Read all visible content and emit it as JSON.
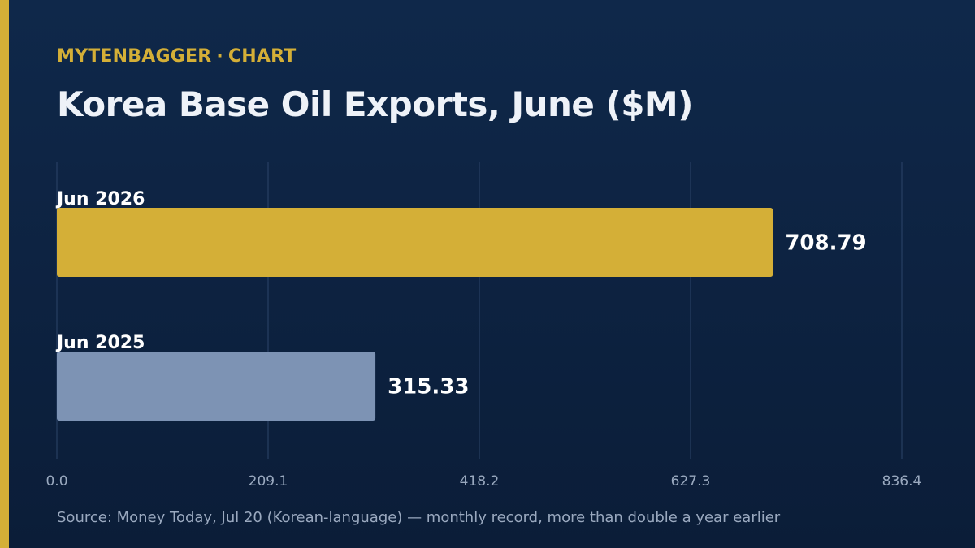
{
  "brand": {
    "name": "MYTENBAGGER",
    "separator": "·",
    "section": "CHART"
  },
  "title": "Korea Base Oil Exports, June ($M)",
  "source": "Source: Money Today, Jul 20 (Korean-language) — monthly record, more than double a year earlier",
  "colors": {
    "background": "#0f284a",
    "accent": "#d4af37",
    "bar_current": "#d4af37",
    "bar_prior": "#7d93b4",
    "gridline": "#2c4469",
    "tick_text": "#9aa9bf"
  },
  "chart_data": {
    "type": "bar",
    "orientation": "horizontal",
    "categories": [
      "Jun 2026",
      "Jun 2025"
    ],
    "values": [
      708.79,
      315.33
    ],
    "value_labels": [
      "708.79",
      "315.33"
    ],
    "bar_colors": [
      "#d4af37",
      "#7d93b4"
    ],
    "xlim": [
      0,
      836.4
    ],
    "xticks": [
      0,
      209.1,
      418.2,
      627.3,
      836.4
    ],
    "xtick_labels": [
      "0.0",
      "209.1",
      "418.2",
      "627.3",
      "836.4"
    ],
    "grid": true
  }
}
